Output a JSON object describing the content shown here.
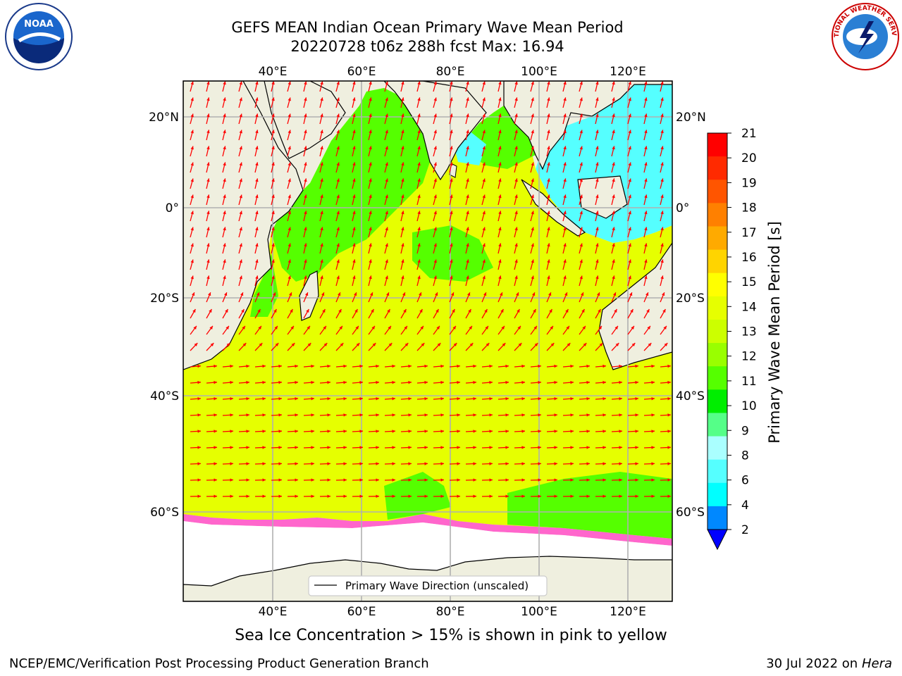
{
  "header": {
    "title_line1": "GEFS MEAN Indian Ocean Primary Wave Mean Period",
    "title_line2": "20220728 t06z 288h fcst   Max: 16.94"
  },
  "logos": {
    "left": {
      "name": "noaa-logo",
      "text": "NOAA"
    },
    "right": {
      "name": "nws-logo",
      "text": "NATIONAL WEATHER SERVICE"
    }
  },
  "map": {
    "lon_ticks": [
      "40°E",
      "60°E",
      "80°E",
      "100°E",
      "120°E"
    ],
    "lat_ticks": [
      "20°N",
      "0°",
      "20°S",
      "40°S",
      "60°S"
    ],
    "legend_label": "Primary Wave Direction (unscaled)",
    "ocean_color": "#e6ff00",
    "land_color": "#efefdf",
    "arrow_color": "#ff0000"
  },
  "colorbar": {
    "label": "Primary Wave Mean Period [s]",
    "ticks": [
      "21",
      "20",
      "19",
      "18",
      "17",
      "16",
      "15",
      "14",
      "13",
      "12",
      "11",
      "10",
      "9",
      "8",
      "6",
      "4",
      "2"
    ],
    "colors": [
      "#ff0000",
      "#ff2a00",
      "#ff5500",
      "#ff8000",
      "#ffaa00",
      "#ffd400",
      "#ffff00",
      "#e6ff00",
      "#ccff00",
      "#99ff00",
      "#55ff00",
      "#00ee00",
      "#55ff88",
      "#aaffff",
      "#55ffff",
      "#00ffff",
      "#0088ff"
    ],
    "extend_color": "#0000ff"
  },
  "caption": "Sea Ice Concentration > 15% is shown in pink to yellow",
  "footer": {
    "left": "NCEP/EMC/Verification Post Processing Product Generation Branch",
    "right_prefix": "30 Jul 2022 on ",
    "right_italic": "Hera"
  }
}
